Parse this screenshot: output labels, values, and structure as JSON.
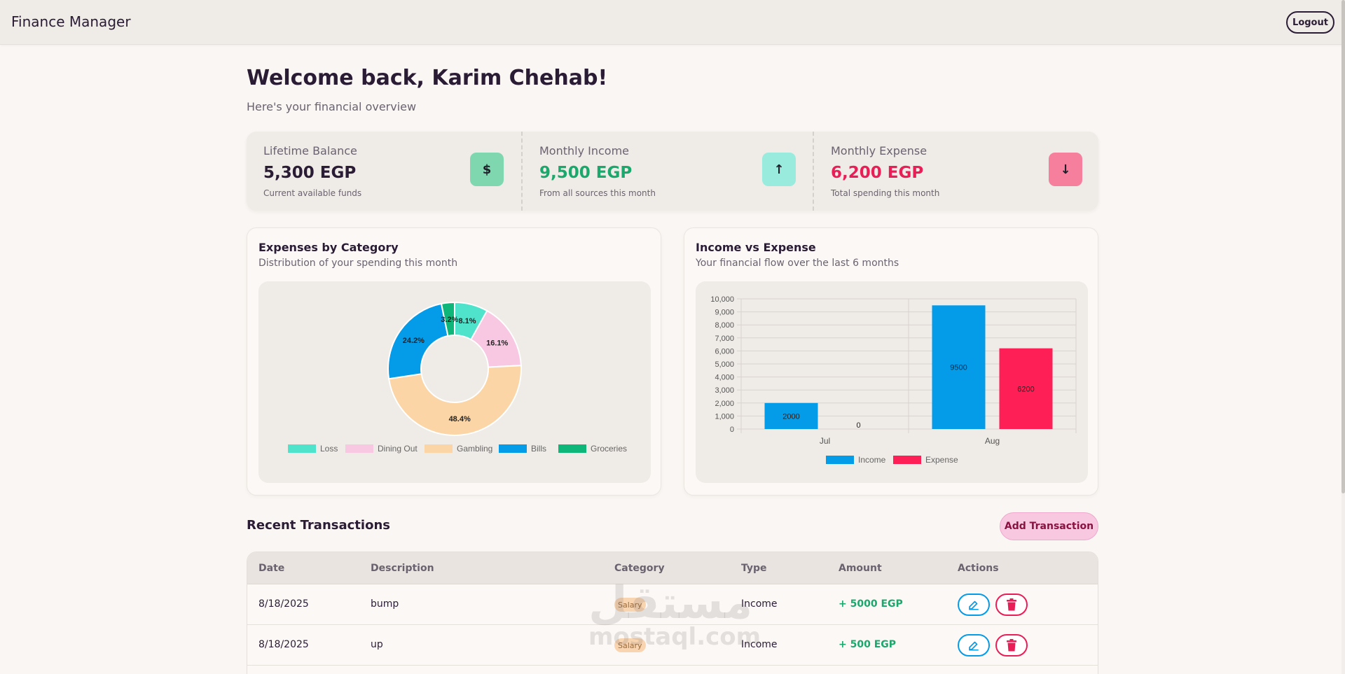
{
  "app": {
    "title": "Finance Manager",
    "logout_label": "Logout"
  },
  "header": {
    "welcome": "Welcome back, Karim Chehab!",
    "subtitle": "Here's your financial overview"
  },
  "stats": [
    {
      "label": "Lifetime Balance",
      "value": "5,300 EGP",
      "note": "Current available funds",
      "icon": "$",
      "icon_name": "dollar-icon",
      "value_color": "#2a1c35",
      "icon_bg": "#7fd7b0"
    },
    {
      "label": "Monthly Income",
      "value": "9,500 EGP",
      "note": "From all sources this month",
      "icon": "↑",
      "icon_name": "arrow-up-icon",
      "value_color": "#1aa86c",
      "icon_bg": "#99ebde"
    },
    {
      "label": "Monthly Expense",
      "value": "6,200 EGP",
      "note": "Total spending this month",
      "icon": "↓",
      "icon_name": "arrow-down-icon",
      "value_color": "#ea1e56",
      "icon_bg": "#f57f9d"
    }
  ],
  "expenses_card": {
    "title": "Expenses by Category",
    "desc": "Distribution of your spending this month"
  },
  "income_card": {
    "title": "Income vs Expense",
    "desc": "Your financial flow over the last 6 months"
  },
  "chart_data": [
    {
      "type": "pie",
      "title": "Expenses by Category",
      "categories": [
        "Loss",
        "Dining Out",
        "Gambling",
        "Bills",
        "Groceries"
      ],
      "values": [
        8.1,
        16.1,
        48.4,
        24.2,
        3.2
      ],
      "colors": [
        "#4fe3cc",
        "#f8c8e2",
        "#fbd5a5",
        "#049be8",
        "#0fb67a"
      ],
      "labels": [
        "8.1%",
        "16.1%",
        "48.4%",
        "24.2%",
        "3.2%"
      ],
      "legend": "bottom"
    },
    {
      "type": "bar",
      "title": "Income vs Expense",
      "categories": [
        "Jul",
        "Aug"
      ],
      "series": [
        {
          "name": "Income",
          "values": [
            2000,
            9500
          ],
          "color": "#049be8"
        },
        {
          "name": "Expense",
          "values": [
            0,
            6200
          ],
          "color": "#ff1f57"
        }
      ],
      "ylim": [
        0,
        10000
      ],
      "yticks": [
        "0",
        "1,000",
        "2,000",
        "3,000",
        "4,000",
        "5,000",
        "6,000",
        "7,000",
        "8,000",
        "9,000",
        "10,000"
      ],
      "grid": true,
      "legend": "bottom"
    }
  ],
  "transactions": {
    "title": "Recent Transactions",
    "add_label": "Add Transaction",
    "columns": [
      "Date",
      "Description",
      "Category",
      "Type",
      "Amount",
      "Actions"
    ],
    "rows": [
      {
        "date": "8/18/2025",
        "description": "bump",
        "category": "Salary",
        "type": "Income",
        "amount": "+ 5000 EGP"
      },
      {
        "date": "8/18/2025",
        "description": "up",
        "category": "Salary",
        "type": "Income",
        "amount": "+ 500 EGP"
      }
    ]
  },
  "watermark": {
    "arabic": "مستقل",
    "latin": "mostaql.com"
  }
}
